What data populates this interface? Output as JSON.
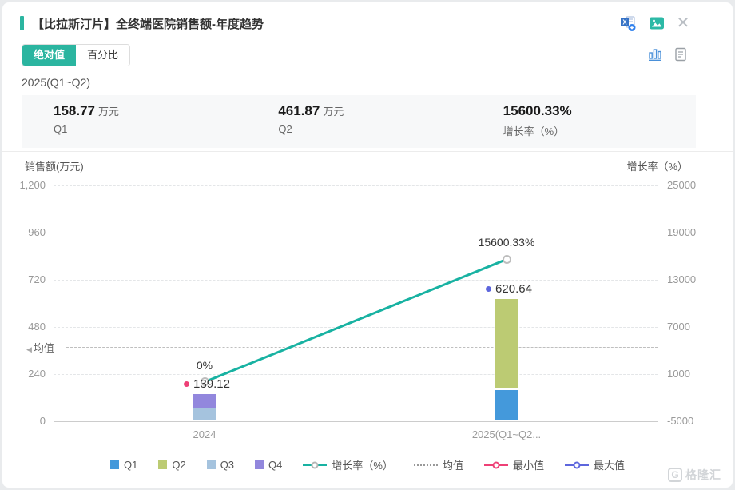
{
  "header": {
    "title": "【比拉斯汀片】全终端医院销售额-年度趋势",
    "icons": [
      "excel-export-icon",
      "image-export-icon",
      "close-icon"
    ]
  },
  "toolbar": {
    "absolute_label": "绝对值",
    "percent_label": "百分比",
    "view_icons": [
      "chart-view-icon",
      "table-view-icon"
    ]
  },
  "period": {
    "label": "2025(Q1~Q2)"
  },
  "stats": [
    {
      "value": "158.77",
      "unit": "万元",
      "label": "Q1"
    },
    {
      "value": "461.87",
      "unit": "万元",
      "label": "Q2"
    },
    {
      "value": "15600.33%",
      "unit": "",
      "label": "增长率（%）"
    }
  ],
  "colors": {
    "accent": "#2bb5a0",
    "q1": "#4499db",
    "q2": "#bccb73",
    "q3": "#a5c3de",
    "q4": "#9287dd",
    "growth_line": "#18b2a2",
    "min_marker": "#ee4076",
    "max_marker": "#5d66dd"
  },
  "chart_data": {
    "type": "bar",
    "categories": [
      "2024",
      "2025(Q1~Q2..."
    ],
    "series": [
      {
        "name": "Q1",
        "color": "#4499db",
        "values": [
          0,
          158.77
        ]
      },
      {
        "name": "Q2",
        "color": "#bccb73",
        "values": [
          0,
          461.87
        ]
      },
      {
        "name": "Q3",
        "color": "#a5c3de",
        "values": [
          63.12,
          0
        ]
      },
      {
        "name": "Q4",
        "color": "#9287dd",
        "values": [
          76.0,
          0
        ]
      }
    ],
    "totals": [
      139.12,
      620.64
    ],
    "total_labels": [
      "139.12",
      "620.64"
    ],
    "growth": {
      "name": "增长率（%）",
      "color": "#18b2a2",
      "values": [
        0,
        15600.33
      ],
      "labels": [
        "0%",
        "15600.33%"
      ]
    },
    "left_axis": {
      "title": "销售额(万元)",
      "ticks": [
        "1,200",
        "960",
        "720",
        "480",
        "240",
        "0"
      ],
      "min": 0,
      "max": 1200
    },
    "right_axis": {
      "title": "增长率（%）",
      "ticks": [
        "25000",
        "19000",
        "13000",
        "7000",
        "1000",
        "-5000"
      ],
      "min": -5000,
      "max": 25000
    },
    "mean": {
      "label": "均值",
      "value": 379.88
    },
    "markers": {
      "min": {
        "label": "最小值",
        "color": "#ee4076",
        "category": 0
      },
      "max": {
        "label": "最大值",
        "color": "#5d66dd",
        "category": 1
      }
    },
    "legend": [
      {
        "label": "Q1",
        "type": "square",
        "color": "#4499db"
      },
      {
        "label": "Q2",
        "type": "square",
        "color": "#bccb73"
      },
      {
        "label": "Q3",
        "type": "square",
        "color": "#a5c3de"
      },
      {
        "label": "Q4",
        "type": "square",
        "color": "#9287dd"
      },
      {
        "label": "增长率（%）",
        "type": "line-circle",
        "color": "#18b2a2"
      },
      {
        "label": "均值",
        "type": "dotted-line",
        "color": "#999999"
      },
      {
        "label": "最小值",
        "type": "circle-line",
        "color": "#ee4076"
      },
      {
        "label": "最大值",
        "type": "circle-line",
        "color": "#5d66dd"
      }
    ]
  },
  "watermark": {
    "logo": "G",
    "text": "格隆汇"
  }
}
